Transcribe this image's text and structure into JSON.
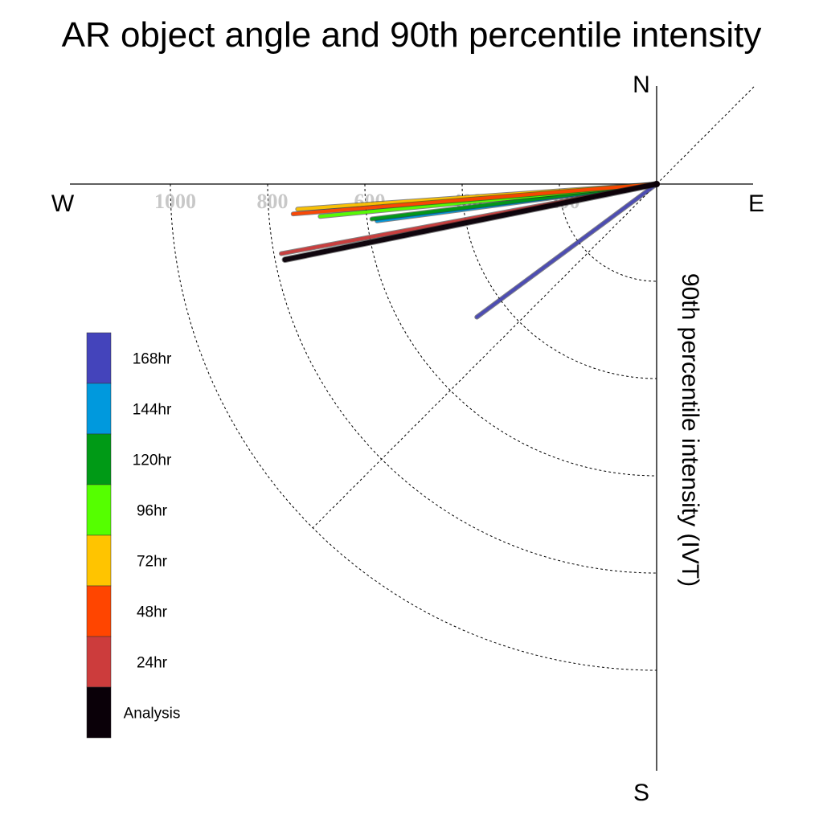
{
  "chart_data": {
    "type": "polar-line",
    "title": "AR object angle and 90th percentile intensity",
    "ylabel": "90th percentile intensity (IVT)",
    "compass": {
      "n": "N",
      "e": "E",
      "s": "S",
      "w": "W"
    },
    "radial_ticks": [
      "200",
      "400",
      "600",
      "800",
      "1000"
    ],
    "radial_range": [
      0,
      1200
    ],
    "grid": true,
    "legend_position": "left",
    "series": [
      {
        "name": "Analysis",
        "color": "#0a0008",
        "intensity": 780,
        "angle_below_west_deg": 11.5
      },
      {
        "name": "24hr",
        "color": "#cc3c3c",
        "intensity": 785,
        "angle_below_west_deg": 10.5
      },
      {
        "name": "48hr",
        "color": "#ff4500",
        "intensity": 750,
        "angle_below_west_deg": 4.7
      },
      {
        "name": "72hr",
        "color": "#ffc400",
        "intensity": 740,
        "angle_below_west_deg": 4.0
      },
      {
        "name": "96hr",
        "color": "#55ff00",
        "intensity": 695,
        "angle_below_west_deg": 5.5
      },
      {
        "name": "120hr",
        "color": "#009a16",
        "intensity": 590,
        "angle_below_west_deg": 7.0
      },
      {
        "name": "144hr",
        "color": "#0099dd",
        "intensity": 580,
        "angle_below_west_deg": 7.5
      },
      {
        "name": "168hr",
        "color": "#4444bb",
        "intensity": 460,
        "angle_below_west_deg": 36.5
      }
    ]
  }
}
